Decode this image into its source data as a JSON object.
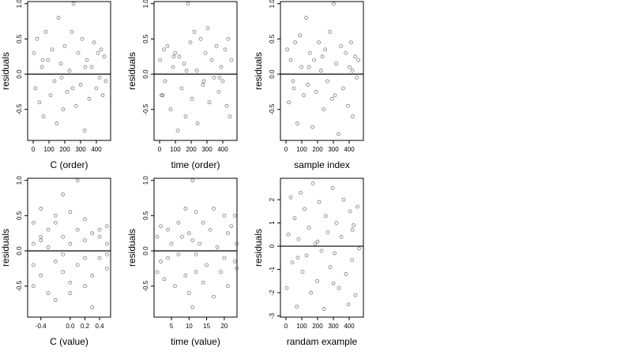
{
  "chart_data": [
    {
      "type": "scatter",
      "xlabel": "C (order)",
      "ylabel": "residuals",
      "color": "#444444",
      "hline": 0,
      "xlim": [
        -35,
        490
      ],
      "ylim": [
        -0.94,
        1.03
      ],
      "xticks": [
        0,
        100,
        200,
        300,
        400
      ],
      "yticks": [
        {
          "value": -0.5,
          "label": "-0.5"
        },
        {
          "value": 0,
          "label": "0.0"
        },
        {
          "value": 0.5,
          "label": "0.5"
        },
        {
          "value": 1,
          "label": "1.0"
        }
      ],
      "x": [
        5,
        15,
        25,
        40,
        55,
        65,
        80,
        95,
        110,
        120,
        135,
        150,
        160,
        175,
        190,
        200,
        215,
        230,
        245,
        255,
        270,
        285,
        300,
        310,
        325,
        340,
        355,
        370,
        385,
        400,
        410,
        420,
        430,
        440,
        450,
        460,
        60,
        180,
        250,
        330
      ],
      "y": [
        0.3,
        -0.2,
        0.5,
        -0.4,
        0.1,
        -0.6,
        0.6,
        0.2,
        -0.3,
        0.35,
        -0.1,
        -0.7,
        0.8,
        0.15,
        -0.5,
        0.4,
        -0.25,
        0.05,
        0.6,
        1.0,
        -0.45,
        0.3,
        -0.15,
        0.5,
        -0.8,
        0.2,
        -0.35,
        0.1,
        0.45,
        -0.2,
        0.3,
        -0.05,
        0.35,
        -0.3,
        0.25,
        -0.1,
        0.2,
        -0.05,
        -0.2,
        0.1
      ]
    },
    {
      "type": "scatter",
      "xlabel": "time (order)",
      "ylabel": "residuals",
      "color": "#444444",
      "hline": 0,
      "xlim": [
        -35,
        490
      ],
      "ylim": [
        -0.94,
        1.03
      ],
      "xticks": [
        0,
        100,
        200,
        300,
        400
      ],
      "yticks": [
        {
          "value": -0.5,
          "label": "-0.5"
        },
        {
          "value": 0,
          "label": "0.0"
        },
        {
          "value": 0.5,
          "label": "0.5"
        },
        {
          "value": 1,
          "label": "1.0"
        }
      ],
      "x": [
        3,
        12,
        28,
        35,
        50,
        70,
        85,
        100,
        115,
        125,
        140,
        155,
        165,
        180,
        195,
        205,
        220,
        235,
        240,
        260,
        275,
        290,
        305,
        315,
        330,
        345,
        360,
        375,
        390,
        400,
        415,
        425,
        435,
        445,
        455,
        20,
        90,
        170,
        280,
        380
      ],
      "y": [
        0.2,
        -0.3,
        0.35,
        -0.1,
        0.4,
        -0.5,
        0.1,
        0.3,
        -0.8,
        0.25,
        -0.2,
        0.15,
        -0.6,
        1.0,
        0.45,
        -0.35,
        0.6,
        0.05,
        -0.7,
        0.5,
        -0.15,
        0.3,
        0.65,
        -0.4,
        0.2,
        -0.05,
        0.4,
        -0.25,
        0.1,
        -0.1,
        0.35,
        -0.45,
        0.5,
        -0.6,
        0.2,
        -0.3,
        0.25,
        0.05,
        -0.1,
        -0.05
      ]
    },
    {
      "type": "scatter",
      "xlabel": "sample index",
      "ylabel": "residuals",
      "color": "#444444",
      "hline": 0,
      "xlim": [
        -35,
        490
      ],
      "ylim": [
        -0.94,
        1.03
      ],
      "xticks": [
        0,
        100,
        200,
        300,
        400
      ],
      "yticks": [
        {
          "value": -0.5,
          "label": "-0.5"
        },
        {
          "value": 0,
          "label": "0.0"
        },
        {
          "value": 0.5,
          "label": "0.5"
        },
        {
          "value": 1,
          "label": "1.0"
        }
      ],
      "x": [
        8,
        18,
        30,
        45,
        58,
        72,
        88,
        98,
        112,
        128,
        138,
        152,
        168,
        178,
        192,
        208,
        222,
        238,
        248,
        262,
        278,
        292,
        302,
        318,
        332,
        348,
        362,
        378,
        392,
        402,
        412,
        422,
        438,
        448,
        458,
        50,
        145,
        230,
        310,
        420
      ],
      "y": [
        0.35,
        -0.4,
        0.2,
        -0.1,
        0.45,
        -0.7,
        0.55,
        0.1,
        -0.3,
        0.8,
        -0.15,
        0.3,
        -0.75,
        0.2,
        -0.25,
        0.45,
        0.05,
        -0.5,
        0.35,
        -0.1,
        0.6,
        -0.35,
        1.0,
        0.15,
        -0.85,
        0.4,
        -0.2,
        0.3,
        -0.45,
        0.1,
        0.45,
        -0.6,
        0.25,
        -0.05,
        0.2,
        -0.2,
        0.1,
        0.25,
        -0.3,
        0.05
      ]
    },
    {
      "type": "scatter",
      "xlabel": "C (value)",
      "ylabel": "residuals",
      "color": "#444444",
      "hline": 0,
      "xlim": [
        -0.58,
        0.55
      ],
      "ylim": [
        -0.94,
        1.03
      ],
      "xticks": [
        -0.4,
        {
          "value": 0,
          "label": "0.0"
        },
        0.2,
        0.4
      ],
      "yticks": [
        {
          "value": -0.5,
          "label": "-0.5"
        },
        {
          "value": 0,
          "label": "0.0"
        },
        {
          "value": 0.5,
          "label": "0.5"
        },
        {
          "value": 1,
          "label": "1.0"
        }
      ],
      "x": [
        -0.5,
        -0.5,
        -0.5,
        -0.5,
        -0.4,
        -0.4,
        -0.4,
        -0.3,
        -0.3,
        -0.3,
        -0.2,
        -0.2,
        -0.2,
        -0.1,
        -0.1,
        -0.1,
        -0.1,
        0.0,
        0.0,
        0.0,
        0.1,
        0.1,
        0.1,
        0.2,
        0.2,
        0.2,
        0.2,
        0.3,
        0.3,
        0.3,
        0.4,
        0.4,
        0.4,
        0.5,
        0.5,
        0.5,
        0.5,
        -0.2,
        0.0,
        -0.4
      ],
      "y": [
        0.4,
        -0.2,
        0.1,
        -0.5,
        0.6,
        -0.35,
        0.2,
        0.3,
        -0.6,
        0.05,
        0.5,
        -0.15,
        -0.7,
        0.8,
        0.2,
        -0.3,
        -0.05,
        0.55,
        -0.45,
        0.1,
        1.0,
        -0.2,
        0.3,
        0.45,
        -0.1,
        -0.5,
        0.15,
        0.25,
        -0.35,
        -0.8,
        0.3,
        -0.1,
        0.2,
        0.35,
        -0.25,
        0.1,
        -0.05,
        0.4,
        -0.6,
        0.15
      ]
    },
    {
      "type": "scatter",
      "xlabel": "time (value)",
      "ylabel": "residuals",
      "color": "#444444",
      "hline": 0,
      "xlim": [
        0.08,
        23.6
      ],
      "ylim": [
        -0.94,
        1.03
      ],
      "xticks": [
        5,
        10,
        15,
        20
      ],
      "yticks": [
        {
          "value": -0.5,
          "label": "-0.5"
        },
        {
          "value": 0,
          "label": "0.0"
        },
        {
          "value": 0.5,
          "label": "0.5"
        },
        {
          "value": 1,
          "label": "1.0"
        }
      ],
      "x": [
        1,
        1,
        2,
        2,
        3,
        4,
        4,
        5,
        6,
        7,
        7,
        8,
        9,
        9,
        10,
        10,
        11,
        11,
        11,
        12,
        12,
        13,
        14,
        14,
        15,
        16,
        17,
        17,
        18,
        19,
        20,
        20,
        21,
        21,
        22,
        23,
        23,
        23.5,
        23.5,
        12
      ],
      "y": [
        -0.3,
        0.2,
        0.35,
        -0.15,
        -0.4,
        0.3,
        -0.1,
        0.1,
        -0.5,
        0.4,
        -0.05,
        0.2,
        -0.35,
        0.6,
        -0.6,
        0.25,
        1.0,
        -0.8,
        0.15,
        0.55,
        -0.3,
        0.1,
        -0.45,
        0.4,
        -0.2,
        0.3,
        -0.65,
        0.6,
        0.05,
        -0.3,
        0.5,
        -0.1,
        0.25,
        -0.5,
        0.35,
        -0.15,
        0.5,
        -0.25,
        0.1,
        -0.05
      ]
    },
    {
      "type": "scatter",
      "xlabel": "randam example",
      "ylabel": "residuals",
      "color": "#444444",
      "hline": 0,
      "xlim": [
        -35,
        490
      ],
      "ylim": [
        -3.05,
        2.92
      ],
      "xticks": [
        0,
        100,
        200,
        300,
        400
      ],
      "yticks": [
        -3,
        -2,
        -1,
        0,
        1,
        2
      ],
      "x": [
        5,
        15,
        30,
        40,
        55,
        68,
        80,
        92,
        105,
        118,
        130,
        145,
        158,
        170,
        185,
        198,
        210,
        225,
        240,
        252,
        265,
        280,
        295,
        308,
        320,
        335,
        350,
        365,
        380,
        395,
        405,
        418,
        428,
        440,
        452,
        462,
        75,
        200,
        300,
        420
      ],
      "y": [
        -1.8,
        0.5,
        2.1,
        -0.7,
        1.2,
        -2.6,
        0.3,
        2.3,
        -1.1,
        1.6,
        -0.4,
        0.8,
        -2.0,
        2.7,
        0.1,
        -1.5,
        1.9,
        -0.2,
        -2.7,
        1.3,
        0.6,
        -0.9,
        2.5,
        -0.3,
        1.0,
        -1.8,
        0.4,
        2.0,
        -1.2,
        -2.5,
        1.5,
        -0.6,
        0.9,
        -2.1,
        1.7,
        -0.1,
        -0.5,
        0.2,
        -1.6,
        0.7
      ]
    }
  ]
}
